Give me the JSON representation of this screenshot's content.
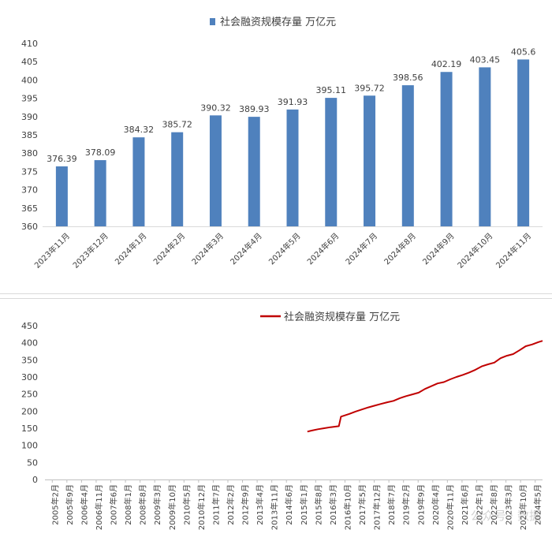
{
  "chart_data": [
    {
      "type": "bar",
      "title": "社会融资规模存量 万亿元",
      "legend": {
        "position": "top",
        "entry": "社会融资规模存量 万亿元"
      },
      "categories": [
        "2023年11月",
        "2023年12月",
        "2024年1月",
        "2024年2月",
        "2024年3月",
        "2024年4月",
        "2024年5月",
        "2024年6月",
        "2024年7月",
        "2024年8月",
        "2024年9月",
        "2024年10月",
        "2024年11月"
      ],
      "values": [
        376.39,
        378.09,
        384.32,
        385.72,
        390.32,
        389.93,
        391.93,
        395.11,
        395.72,
        398.56,
        402.19,
        403.45,
        405.6
      ],
      "value_labels": [
        "376.39",
        "378.09",
        "384.32",
        "385.72",
        "390.32",
        "389.93",
        "391.93",
        "395.11",
        "395.72",
        "398.56",
        "402.19",
        "403.45",
        "405.6"
      ],
      "ylim": [
        360,
        410
      ],
      "yticks": [
        "360",
        "365",
        "370",
        "375",
        "380",
        "385",
        "390",
        "395",
        "400",
        "405",
        "410"
      ],
      "grid": false,
      "color": "#4f81bd"
    },
    {
      "type": "line",
      "title": "社会融资规模存量 万亿元",
      "legend": {
        "position": "top",
        "entry": "社会融资规模存量 万亿元"
      },
      "x_tick_labels": [
        "2005年2月",
        "2005年9月",
        "2006年4月",
        "2006年11月",
        "2007年6月",
        "2008年1月",
        "2008年8月",
        "2009年3月",
        "2009年10月",
        "2010年5月",
        "2010年12月",
        "2011年7月",
        "2012年2月",
        "2012年9月",
        "2013年4月",
        "2013年11月",
        "2014年6月",
        "2015年1月",
        "2015年8月",
        "2016年3月",
        "2016年10月",
        "2017年5月",
        "2017年12月",
        "2018年7月",
        "2019年2月",
        "2019年9月",
        "2020年4月",
        "2020年11月",
        "2021年6月",
        "2022年1月",
        "2022年8月",
        "2023年3月",
        "2023年10月",
        "2024年5月"
      ],
      "x_range": [
        "2005-02",
        "2024-11"
      ],
      "yticks": [
        "0",
        "50",
        "100",
        "150",
        "200",
        "250",
        "300",
        "350",
        "400",
        "450"
      ],
      "ylim": [
        0,
        450
      ],
      "grid": false,
      "color": "#c00000",
      "points": [
        [
          "2015-07",
          140
        ],
        [
          "2015-09",
          143
        ],
        [
          "2015-12",
          147
        ],
        [
          "2016-03",
          150
        ],
        [
          "2016-06",
          153
        ],
        [
          "2016-10",
          156
        ],
        [
          "2016-11",
          184
        ],
        [
          "2017-03",
          192
        ],
        [
          "2017-06",
          199
        ],
        [
          "2017-09",
          205
        ],
        [
          "2017-12",
          211
        ],
        [
          "2018-03",
          216
        ],
        [
          "2018-06",
          221
        ],
        [
          "2018-09",
          226
        ],
        [
          "2018-12",
          230
        ],
        [
          "2019-03",
          238
        ],
        [
          "2019-06",
          244
        ],
        [
          "2019-09",
          249
        ],
        [
          "2019-12",
          254
        ],
        [
          "2020-03",
          265
        ],
        [
          "2020-06",
          273
        ],
        [
          "2020-09",
          281
        ],
        [
          "2020-12",
          285
        ],
        [
          "2021-03",
          293
        ],
        [
          "2021-06",
          300
        ],
        [
          "2021-09",
          306
        ],
        [
          "2021-12",
          313
        ],
        [
          "2022-03",
          321
        ],
        [
          "2022-06",
          331
        ],
        [
          "2022-09",
          337
        ],
        [
          "2022-12",
          342
        ],
        [
          "2023-03",
          355
        ],
        [
          "2023-06",
          362
        ],
        [
          "2023-09",
          367
        ],
        [
          "2023-12",
          378
        ],
        [
          "2024-03",
          390
        ],
        [
          "2024-06",
          395
        ],
        [
          "2024-09",
          402
        ],
        [
          "2024-11",
          405.6
        ]
      ]
    }
  ],
  "watermark": "公众号 · 数据"
}
